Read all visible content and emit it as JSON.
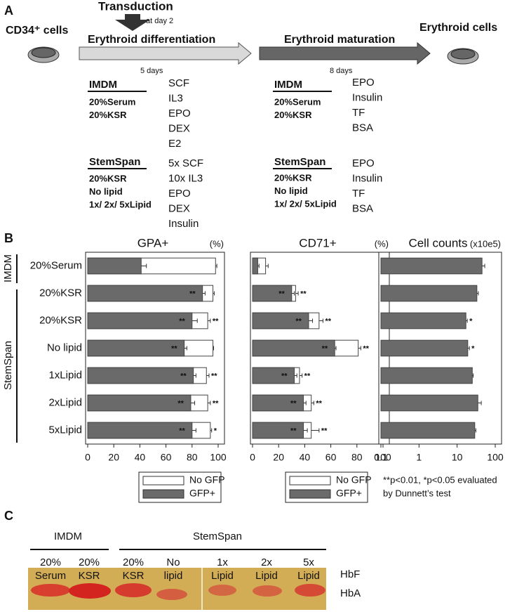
{
  "panel_a": {
    "label": "A",
    "start": "CD34⁺ cells",
    "transduction": "Transduction",
    "transduction_day": "at day 2",
    "differentiation": "Erythroid differentiation",
    "differentiation_days": "5 days",
    "maturation": "Erythroid maturation",
    "maturation_days": "8 days",
    "end": "Erythroid cells",
    "diff_media": [
      {
        "medium": "IMDM",
        "conditions": [
          "20%Serum",
          "20%KSR"
        ],
        "factors": [
          "SCF",
          "IL3",
          "EPO",
          "DEX",
          "E2"
        ]
      },
      {
        "medium": "StemSpan",
        "conditions": [
          "20%KSR",
          "No lipid",
          "1x/ 2x/ 5xLipid"
        ],
        "factors": [
          "5x SCF",
          "10x IL3",
          "EPO",
          "DEX",
          "Insulin"
        ]
      }
    ],
    "mat_media": [
      {
        "medium": "IMDM",
        "conditions": [
          "20%Serum",
          "20%KSR"
        ],
        "factors": [
          "EPO",
          "Insulin",
          "TF",
          "BSA"
        ]
      },
      {
        "medium": "StemSpan",
        "conditions": [
          "20%KSR",
          "No lipid",
          "1x/ 2x/ 5xLipid"
        ],
        "factors": [
          "EPO",
          "Insulin",
          "TF",
          "BSA"
        ]
      }
    ]
  },
  "panel_b": {
    "label": "B",
    "groups": [
      "IMDM",
      "StemSpan"
    ],
    "note": [
      "**p<0.01, *p<0.05 evaluated",
      "by Dunnett’s test"
    ]
  },
  "chart_data": [
    {
      "type": "bar",
      "orientation": "horizontal",
      "title": "GPA+",
      "unit": "(%)",
      "categories": [
        "20%Serum",
        "20%KSR",
        "20%KSR",
        "No lipid",
        "1xLipid",
        "2xLipid",
        "5xLipid"
      ],
      "xlim": [
        0,
        100
      ],
      "xticks": [
        0,
        20,
        40,
        60,
        80,
        100
      ],
      "legend": "below",
      "series": [
        {
          "name": "No GFP",
          "color": "#ffffff",
          "values": [
            98,
            96,
            92,
            96,
            91,
            92,
            94
          ],
          "errors": [
            1,
            1,
            2,
            0.5,
            2,
            2,
            1
          ],
          "labels": [
            null,
            null,
            "**",
            null,
            "**",
            "**",
            "*"
          ]
        },
        {
          "name": "GFP+",
          "color": "#6a6a6a",
          "values": [
            41,
            88,
            80,
            74,
            81,
            79,
            80
          ],
          "errors": [
            4,
            2,
            4,
            2,
            2,
            3,
            3
          ],
          "labels": [
            null,
            "**",
            "**",
            "**",
            "**",
            "**",
            "**"
          ]
        }
      ]
    },
    {
      "type": "bar",
      "orientation": "horizontal",
      "title": "CD71+",
      "unit": "(%)",
      "xlim": [
        0,
        100
      ],
      "xticks": [
        0,
        20,
        40,
        60,
        80,
        100
      ],
      "legend": "below",
      "series": [
        {
          "name": "No GFP",
          "color": "#ffffff",
          "values": [
            10,
            33,
            51,
            81,
            36,
            45,
            45
          ],
          "errors": [
            2,
            2,
            3,
            2,
            2,
            2,
            6
          ],
          "labels": [
            null,
            "**",
            "**",
            "**",
            "**",
            "**",
            "**"
          ]
        },
        {
          "name": "GFP+",
          "color": "#6a6a6a",
          "values": [
            4,
            30,
            43,
            63,
            32,
            39,
            39
          ],
          "errors": [
            1,
            2,
            3,
            1,
            2,
            2,
            3
          ],
          "labels": [
            null,
            "**",
            "**",
            "**",
            "**",
            "**",
            "**"
          ]
        }
      ]
    },
    {
      "type": "bar",
      "orientation": "horizontal",
      "title": "Cell counts",
      "unit": "(x10e5)",
      "xlim": [
        0.1,
        100
      ],
      "xticks": [
        0.1,
        1,
        10,
        100
      ],
      "log": true,
      "series": [
        {
          "color": "#6a6a6a",
          "values": [
            45,
            33,
            17,
            19,
            25,
            35,
            29
          ],
          "errors": [
            8,
            3,
            1.5,
            2,
            1.5,
            8,
            2
          ],
          "labels": [
            null,
            null,
            "*",
            "*",
            null,
            null,
            null
          ]
        }
      ]
    }
  ],
  "panel_c": {
    "label": "C",
    "groups": [
      "IMDM",
      "StemSpan"
    ],
    "lanes": [
      [
        "20%",
        "Serum"
      ],
      [
        "20%",
        "KSR"
      ],
      [
        "20%",
        "KSR"
      ],
      [
        "No",
        "lipid"
      ],
      [
        "1x",
        "Lipid"
      ],
      [
        "2x",
        "Lipid"
      ],
      [
        "5x",
        "Lipid"
      ]
    ],
    "bands": [
      "HbF",
      "HbA"
    ]
  }
}
